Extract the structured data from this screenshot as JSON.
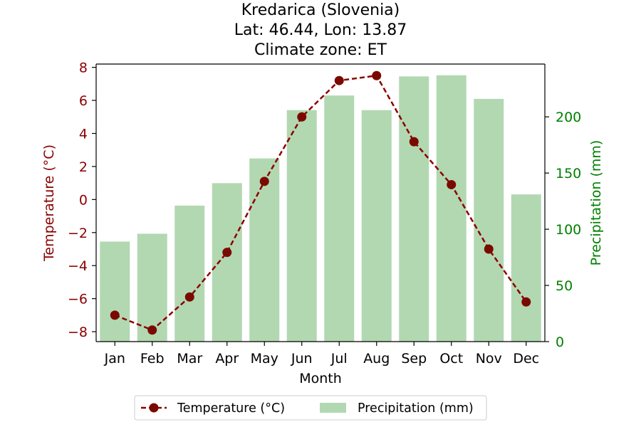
{
  "chart_data": {
    "type": "bar+line",
    "title_lines": [
      "Kredarica (Slovenia)",
      "Lat: 46.44, Lon: 13.87",
      "Climate zone: ET"
    ],
    "categories": [
      "Jan",
      "Feb",
      "Mar",
      "Apr",
      "May",
      "Jun",
      "Jul",
      "Aug",
      "Sep",
      "Oct",
      "Nov",
      "Dec"
    ],
    "xlabel": "Month",
    "y_left": {
      "label": "Temperature (°C)",
      "lim": [
        -8.6,
        8.2
      ],
      "ticks": [
        -8,
        -6,
        -4,
        -2,
        0,
        2,
        4,
        6,
        8
      ],
      "color": "#8b0000"
    },
    "y_right": {
      "label": "Precipitation (mm)",
      "lim": [
        0,
        247
      ],
      "ticks": [
        0,
        50,
        100,
        150,
        200
      ],
      "color": "#008000"
    },
    "series": [
      {
        "name": "Temperature (°C)",
        "kind": "line",
        "axis": "left",
        "style": "dashed",
        "marker": "circle",
        "color": "#8b0000",
        "values": [
          -7.0,
          -7.9,
          -5.9,
          -3.2,
          1.1,
          5.0,
          7.2,
          7.5,
          3.5,
          0.9,
          -3.0,
          -6.2
        ]
      },
      {
        "name": "Precipitation (mm)",
        "kind": "bar",
        "axis": "right",
        "color": "#b2d8b2",
        "values": [
          89,
          96,
          121,
          141,
          163,
          206,
          219,
          206,
          236,
          237,
          216,
          131
        ]
      }
    ],
    "legend": {
      "position": "bottom-center"
    },
    "grid": false
  }
}
